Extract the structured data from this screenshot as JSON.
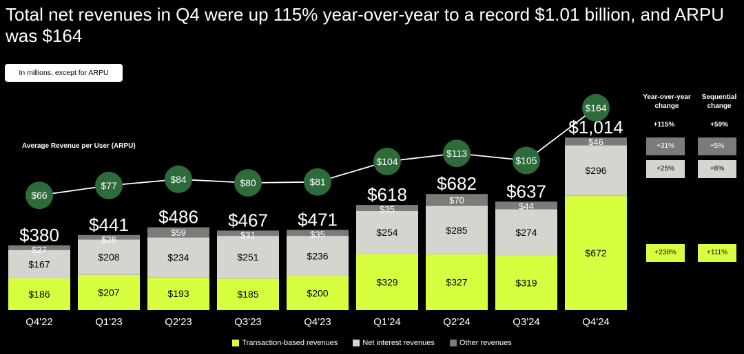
{
  "title": "Total net revenues in Q4 were up 115% year-over-year to a record $1.01 billion, and ARPU was $164",
  "unit_note": "In millions, except for ARPU",
  "colors": {
    "transaction": "#d7ff3f",
    "interest": "#d6d4ce",
    "other": "#7c7b78",
    "arpu_dot": "#2e6b3b",
    "background": "#000000"
  },
  "chart_data": {
    "type": "bar",
    "stacked": true,
    "categories": [
      "Q4'22",
      "Q1'23",
      "Q2'23",
      "Q3'23",
      "Q4'23",
      "Q1'24",
      "Q2'24",
      "Q3'24",
      "Q4'24"
    ],
    "series": [
      {
        "name": "Transaction-based revenues",
        "values": [
          186,
          207,
          193,
          185,
          200,
          329,
          327,
          319,
          672
        ],
        "labels": [
          "$186",
          "$207",
          "$193",
          "$185",
          "$200",
          "$329",
          "$327",
          "$319",
          "$672"
        ]
      },
      {
        "name": "Net interest revenues",
        "values": [
          167,
          208,
          234,
          251,
          236,
          254,
          285,
          274,
          296
        ],
        "labels": [
          "$167",
          "$208",
          "$234",
          "$251",
          "$236",
          "$254",
          "$285",
          "$274",
          "$296"
        ]
      },
      {
        "name": "Other revenues",
        "values": [
          27,
          26,
          59,
          31,
          35,
          35,
          70,
          44,
          46
        ],
        "labels": [
          "$27",
          "$26",
          "$59",
          "$31",
          "$35",
          "$35",
          "$70",
          "$44",
          "$46"
        ]
      }
    ],
    "totals": [
      380,
      441,
      486,
      467,
      471,
      618,
      682,
      637,
      1014
    ],
    "total_labels": [
      "$380",
      "$441",
      "$486",
      "$467",
      "$471",
      "$618",
      "$682",
      "$637",
      "$1,014"
    ],
    "arpu": {
      "title": "Average Revenue per User (ARPU)",
      "type": "line",
      "values": [
        66,
        77,
        84,
        80,
        81,
        104,
        113,
        105,
        164
      ],
      "labels": [
        "$66",
        "$77",
        "$84",
        "$80",
        "$81",
        "$104",
        "$113",
        "$105",
        "$164"
      ]
    },
    "legend_position": "bottom-center"
  },
  "changes": {
    "yoy_header": "Year-over-year change",
    "seq_header": "Sequential change",
    "yoy_total": "+115%",
    "seq_total": "+59%",
    "rows": [
      {
        "series": "Other revenues",
        "yoy": "+31%",
        "seq": "+5%"
      },
      {
        "series": "Net interest revenues",
        "yoy": "+25%",
        "seq": "+8%"
      },
      {
        "series": "Transaction-based revenues",
        "yoy": "+236%",
        "seq": "+111%"
      }
    ]
  },
  "legend": [
    {
      "label": "Transaction-based revenues",
      "color": "#d7ff3f"
    },
    {
      "label": "Net interest revenues",
      "color": "#d6d4ce"
    },
    {
      "label": "Other revenues",
      "color": "#7c7b78"
    }
  ]
}
